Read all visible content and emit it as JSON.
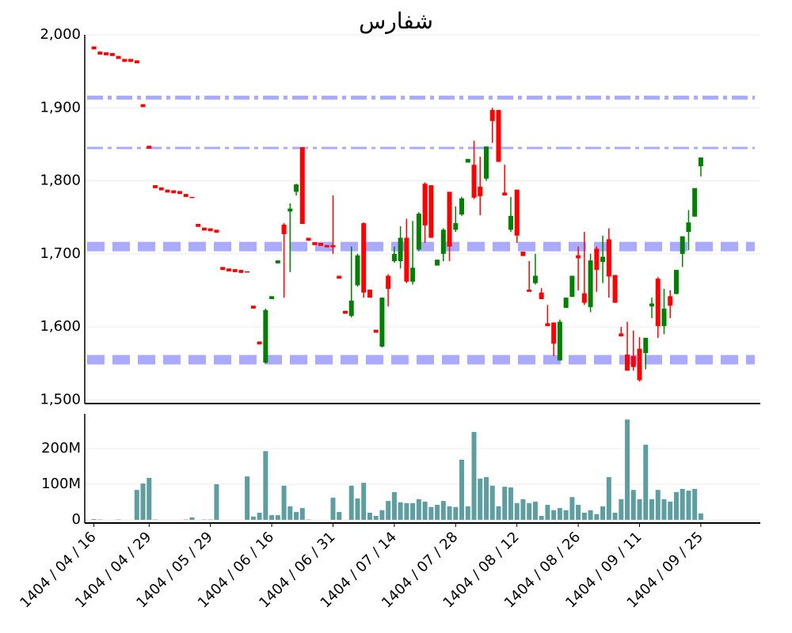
{
  "chart_data": {
    "type": "candlestick",
    "title": "شفارس",
    "title_color": "#000080",
    "categories": [
      "1404 / 04 / 16",
      null,
      null,
      null,
      null,
      null,
      null,
      null,
      null,
      "1404 / 04 / 29",
      null,
      null,
      null,
      null,
      null,
      null,
      null,
      null,
      null,
      "1404 / 05 / 29",
      null,
      null,
      null,
      null,
      null,
      null,
      null,
      null,
      null,
      "1404 / 06 / 16",
      null,
      null,
      null,
      null,
      null,
      null,
      null,
      null,
      null,
      "1404 / 06 / 31",
      null,
      null,
      null,
      null,
      null,
      null,
      null,
      null,
      null,
      "1404 / 07 / 14",
      null,
      null,
      null,
      null,
      null,
      null,
      null,
      null,
      null,
      "1404 / 07 / 28",
      null,
      null,
      null,
      null,
      null,
      null,
      null,
      null,
      null,
      "1404 / 08 / 12",
      null,
      null,
      null,
      null,
      null,
      null,
      null,
      null,
      null,
      "1404 / 08 / 26",
      null,
      null,
      null,
      null,
      null,
      null,
      null,
      null,
      null,
      "1404 / 09 / 11",
      null,
      null,
      null,
      null,
      null,
      null,
      null,
      null,
      null,
      "1404 / 09 / 25"
    ],
    "xlim": [
      -1.5,
      108.7
    ],
    "open": [
      1984,
      1977,
      1976,
      1975,
      1971,
      1967,
      1967,
      1965,
      1905,
      1848,
      1794,
      1791,
      1788,
      1787,
      1786,
      1782,
      1778,
      1741,
      1736,
      1735,
      1733,
      1682,
      1680,
      1679,
      1678,
      1676,
      1629,
      1580,
      1551,
      1638,
      1687,
      1740,
      1758,
      1785,
      1846,
      1722,
      1716,
      1715,
      1712,
      1712,
      1670,
      1622,
      1615,
      1657,
      1742,
      1651,
      1596,
      1573,
      1670,
      1690,
      1690,
      1722,
      1662,
      1706,
      1796,
      1794,
      1684,
      1700,
      1785,
      1733,
      1754,
      1825,
      1822,
      1792,
      1803,
      1897,
      1897,
      1784,
      1733,
      1788,
      1703,
      1651,
      1660,
      1647,
      1605,
      1606,
      1554,
      1626,
      1641,
      1698,
      1646,
      1627,
      1707,
      1689,
      1720,
      1671,
      1591,
      1562,
      1560,
      1570,
      1564,
      1628,
      1666,
      1601,
      1642,
      1645,
      1700,
      1730,
      1751,
      1820
    ],
    "high": [
      1984,
      1977,
      1976,
      1975,
      1971,
      1967,
      1967,
      1965,
      1905,
      1848,
      1794,
      1791,
      1788,
      1787,
      1786,
      1782,
      1778,
      1741,
      1736,
      1735,
      1733,
      1682,
      1680,
      1679,
      1678,
      1676,
      1629,
      1580,
      1625,
      1642,
      1691,
      1742,
      1769,
      1796,
      1846,
      1722,
      1716,
      1715,
      1712,
      1780,
      1670,
      1622,
      1710,
      1700,
      1743,
      1651,
      1596,
      1640,
      1672,
      1710,
      1738,
      1748,
      1745,
      1757,
      1798,
      1794,
      1692,
      1735,
      1785,
      1765,
      1778,
      1830,
      1855,
      1833,
      1847,
      1900,
      1897,
      1822,
      1778,
      1788,
      1703,
      1690,
      1700,
      1653,
      1630,
      1606,
      1610,
      1640,
      1670,
      1710,
      1730,
      1700,
      1710,
      1725,
      1735,
      1671,
      1600,
      1607,
      1595,
      1586,
      1585,
      1640,
      1668,
      1652,
      1650,
      1678,
      1724,
      1760,
      1790,
      1832
    ],
    "low": [
      1980,
      1973,
      1972,
      1971,
      1967,
      1963,
      1963,
      1961,
      1901,
      1844,
      1790,
      1787,
      1784,
      1783,
      1782,
      1778,
      1777,
      1737,
      1732,
      1731,
      1729,
      1678,
      1676,
      1675,
      1674,
      1675,
      1625,
      1576,
      1550,
      1638,
      1687,
      1640,
      1675,
      1780,
      1741,
      1718,
      1712,
      1711,
      1709,
      1700,
      1666,
      1618,
      1613,
      1655,
      1640,
      1640,
      1592,
      1572,
      1628,
      1688,
      1680,
      1660,
      1658,
      1704,
      1715,
      1722,
      1684,
      1690,
      1690,
      1730,
      1752,
      1825,
      1775,
      1753,
      1800,
      1852,
      1826,
      1780,
      1730,
      1715,
      1697,
      1648,
      1658,
      1638,
      1601,
      1560,
      1554,
      1626,
      1641,
      1650,
      1630,
      1620,
      1648,
      1660,
      1640,
      1633,
      1587,
      1540,
      1540,
      1525,
      1542,
      1612,
      1585,
      1590,
      1612,
      1645,
      1682,
      1705,
      1751,
      1806
    ],
    "close": [
      1980,
      1973,
      1972,
      1971,
      1967,
      1963,
      1963,
      1961,
      1901,
      1844,
      1790,
      1787,
      1784,
      1783,
      1782,
      1778,
      1777,
      1737,
      1732,
      1731,
      1729,
      1678,
      1676,
      1675,
      1674,
      1675,
      1625,
      1576,
      1623,
      1642,
      1691,
      1727,
      1762,
      1795,
      1741,
      1718,
      1712,
      1711,
      1709,
      1709,
      1666,
      1618,
      1636,
      1698,
      1647,
      1640,
      1592,
      1640,
      1652,
      1700,
      1722,
      1662,
      1681,
      1755,
      1739,
      1722,
      1692,
      1733,
      1710,
      1742,
      1776,
      1830,
      1777,
      1779,
      1847,
      1882,
      1826,
      1780,
      1752,
      1725,
      1697,
      1648,
      1670,
      1638,
      1601,
      1577,
      1607,
      1640,
      1670,
      1694,
      1633,
      1691,
      1678,
      1696,
      1669,
      1633,
      1587,
      1540,
      1545,
      1527,
      1585,
      1632,
      1601,
      1625,
      1629,
      1678,
      1724,
      1743,
      1790,
      1832
    ],
    "up_color": "#008000",
    "down_color": "#ff0000",
    "ylim": [
      1495,
      2000
    ],
    "yticks": [
      {
        "value": 1500,
        "label": "1,500"
      },
      {
        "value": 1600,
        "label": "1,600"
      },
      {
        "value": 1700,
        "label": "1,700"
      },
      {
        "value": 1800,
        "label": "1,800"
      },
      {
        "value": 1900,
        "label": "1,900"
      },
      {
        "value": 2000,
        "label": "2,000"
      }
    ],
    "grid": true,
    "levels": [
      {
        "value": 1914,
        "style": "dashdot",
        "width": 5
      },
      {
        "value": 1845,
        "style": "dashdot",
        "width": 3
      },
      {
        "value": 1710,
        "style": "dash",
        "width": 12
      },
      {
        "value": 1555,
        "style": "dash",
        "width": 12
      }
    ],
    "level_color": "#aaaaff",
    "volume": [
      2000000,
      1000000,
      0,
      0,
      1000000,
      0,
      0,
      84000000,
      102000000,
      118000000,
      1000000,
      0,
      0,
      0,
      0,
      1000000,
      7000000,
      0,
      1000000,
      1000000,
      100000000,
      0,
      0,
      0,
      0,
      122000000,
      9000000,
      20000000,
      193000000,
      13000000,
      13000000,
      96000000,
      38000000,
      22000000,
      33000000,
      1000000,
      0,
      0,
      0,
      62000000,
      22000000,
      0,
      96000000,
      60000000,
      104000000,
      20000000,
      11000000,
      27000000,
      53000000,
      78000000,
      49000000,
      47000000,
      47000000,
      58000000,
      51000000,
      36000000,
      42000000,
      53000000,
      38000000,
      36000000,
      169000000,
      38000000,
      247000000,
      116000000,
      120000000,
      96000000,
      38000000,
      93000000,
      91000000,
      47000000,
      58000000,
      47000000,
      51000000,
      11000000,
      42000000,
      27000000,
      33000000,
      27000000,
      64000000,
      42000000,
      20000000,
      27000000,
      16000000,
      38000000,
      120000000,
      20000000,
      58000000,
      282000000,
      84000000,
      58000000,
      211000000,
      58000000,
      84000000,
      58000000,
      51000000,
      78000000,
      87000000,
      82000000,
      87000000,
      18000000
    ],
    "volume_color": "#5f9ea0",
    "volume_ylim": [
      -9000000,
      298000000
    ],
    "volume_yticks": [
      0,
      {
        "value": 100000000,
        "label": "100M"
      },
      {
        "value": 200000000,
        "label": "200M"
      }
    ]
  }
}
